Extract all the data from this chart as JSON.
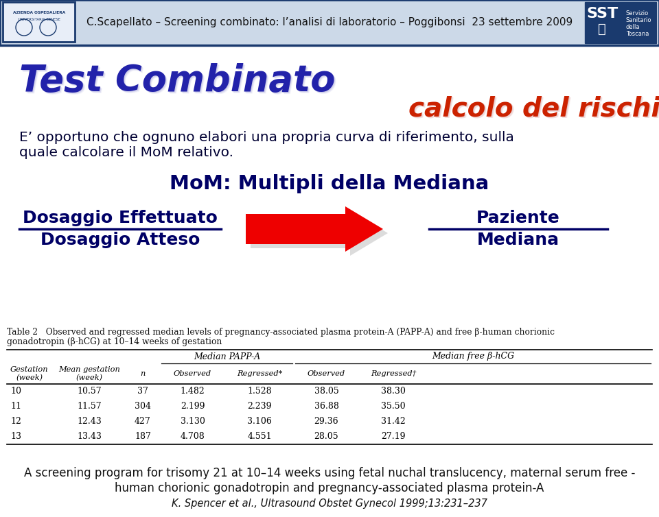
{
  "header_text": "C.Scapellato – Screening combinato: l’analisi di laboratorio – Poggibonsi  23 settembre 2009",
  "title1": "Test Combinato",
  "title2": "calcolo del rischio",
  "body_text1": "E’ opportuno che ognuno elabori una propria curva di riferimento, sulla",
  "body_text2": "quale calcolare il MoM relativo.",
  "mom_title": "MoM: Multipli della Mediana",
  "left_top": "Dosaggio Effettuato",
  "left_bottom": "Dosaggio Atteso",
  "right_top": "Paziente",
  "right_bottom": "Mediana",
  "table_caption": "Table 2   Observed and regressed median levels of pregnancy-associated plasma protein-A (PAPP-A) and free β-human chorionic",
  "table_caption2": "gonadotropin (β-hCG) at 10–14 weeks of gestation",
  "table_col_groups": [
    "Median PAPP-A",
    "Median free β-hCG"
  ],
  "table_data": [
    [
      "10",
      "10.57",
      "37",
      "1.482",
      "1.528",
      "38.05",
      "38.30"
    ],
    [
      "11",
      "11.57",
      "304",
      "2.199",
      "2.239",
      "36.88",
      "35.50"
    ],
    [
      "12",
      "12.43",
      "427",
      "3.130",
      "3.106",
      "29.36",
      "31.42"
    ],
    [
      "13",
      "13.43",
      "187",
      "4.708",
      "4.551",
      "28.05",
      "27.19"
    ]
  ],
  "footer1": "A screening program for trisomy 21 at 10–14 weeks using fetal nuchal translucency, maternal serum free -",
  "footer2": "human chorionic gonadotropin and pregnancy-associated plasma protein-A",
  "footer3": "K. Spencer et al., Ultrasound Obstet Gynecol 1999;13:231–237",
  "bg_color": "#ffffff",
  "header_bg": "#ccd9e8",
  "header_border": "#1a3a6e",
  "title1_color": "#2222aa",
  "title2_color": "#cc2200",
  "body_color": "#000033",
  "mom_color": "#000066",
  "fraction_color": "#000066",
  "arrow_color": "#ee0000",
  "footer_color": "#111111",
  "table_text_color": "#111111"
}
